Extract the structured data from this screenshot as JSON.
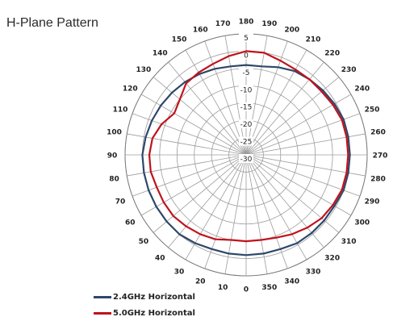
{
  "title": "H-Plane Pattern",
  "legend": [
    {
      "label": "2.4GHz Horizontal",
      "color": "#2e4769"
    },
    {
      "label": "5.0GHz Horizontal",
      "color": "#c0131c"
    }
  ],
  "chart_data": {
    "type": "polar-line",
    "title": "H-Plane Pattern",
    "angle_unit": "degrees",
    "angle_ticks": [
      0,
      10,
      20,
      30,
      40,
      50,
      60,
      70,
      80,
      90,
      100,
      110,
      120,
      130,
      140,
      150,
      160,
      170,
      180,
      190,
      200,
      210,
      220,
      230,
      240,
      250,
      260,
      270,
      280,
      290,
      300,
      310,
      320,
      330,
      340,
      350
    ],
    "radial_ticks": [
      5,
      0,
      -5,
      -10,
      -15,
      -20,
      -25,
      -30
    ],
    "radial_range": [
      -30,
      5
    ],
    "grid": true,
    "legend_position": "bottom-left",
    "series": [
      {
        "name": "2.4GHz Horizontal",
        "color": "#2e4769",
        "angles": [
          0,
          10,
          20,
          30,
          40,
          50,
          60,
          70,
          80,
          90,
          100,
          110,
          120,
          130,
          140,
          150,
          160,
          170,
          180,
          190,
          200,
          210,
          220,
          230,
          240,
          250,
          260,
          270,
          280,
          290,
          300,
          310,
          320,
          330,
          340,
          350
        ],
        "values": [
          -1,
          -1,
          -1,
          -0.5,
          0,
          0,
          0,
          0,
          0,
          0,
          -0.5,
          -1,
          -1.5,
          -2,
          -2.5,
          -3,
          -3.5,
          -4,
          -4,
          -4,
          -3,
          -2,
          -1.5,
          -1,
          -0.5,
          0,
          0,
          0,
          0,
          0,
          -0.5,
          -0.5,
          -0.5,
          -0.5,
          -1,
          -1
        ]
      },
      {
        "name": "5.0GHz Horizontal",
        "color": "#c0131c",
        "angles": [
          0,
          10,
          20,
          30,
          40,
          50,
          60,
          70,
          80,
          90,
          100,
          110,
          120,
          130,
          140,
          150,
          160,
          170,
          180,
          190,
          200,
          210,
          220,
          230,
          240,
          250,
          260,
          270,
          280,
          290,
          300,
          310,
          320,
          330,
          340,
          350
        ],
        "values": [
          -5,
          -5,
          -4,
          -3.5,
          -3,
          -2.5,
          -2.5,
          -2.5,
          -2,
          -2,
          -2.5,
          -4,
          -6,
          -5,
          -3,
          -2.5,
          -2,
          -1,
          0,
          0,
          -1,
          -1.5,
          -1.5,
          -1.5,
          -1,
          -0.5,
          -0.5,
          -0.5,
          -0.5,
          -0.5,
          -1,
          -1.5,
          -2.5,
          -3.5,
          -4.5,
          -5
        ]
      }
    ]
  }
}
